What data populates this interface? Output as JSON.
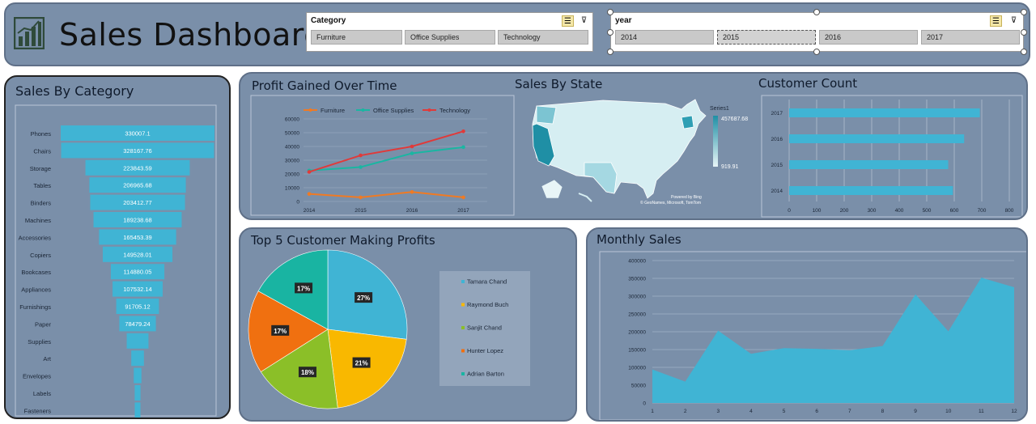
{
  "header": {
    "title": "Sales Dashboard",
    "category_slicer": {
      "label": "Category",
      "items": [
        "Furniture",
        "Office Supplies",
        "Technology"
      ]
    },
    "year_slicer": {
      "label": "year",
      "items": [
        "2014",
        "2015",
        "2016",
        "2017"
      ],
      "selected": "2015"
    }
  },
  "colors": {
    "panel_bg": "#7a8fa9",
    "bar": "#40b4d4",
    "furniture": "#f07a23",
    "office_supplies": "#1ab6a2",
    "technology": "#e03a3a",
    "pie": [
      "#40b4d4",
      "#f9b800",
      "#8bbf28",
      "#f07010",
      "#19b4a2"
    ]
  },
  "chart_data": [
    {
      "id": "sales_by_category",
      "type": "bar",
      "title": "Sales By Category",
      "categories": [
        "Phones",
        "Chairs",
        "Storage",
        "Tables",
        "Binders",
        "Machines",
        "Accessories",
        "Copiers",
        "Bookcases",
        "Appliances",
        "Furnishings",
        "Paper",
        "Supplies",
        "Art",
        "Envelopes",
        "Labels",
        "Fasteners"
      ],
      "values": [
        330007.1,
        328167.76,
        223843.59,
        206965.68,
        203412.77,
        189238.68,
        165453.39,
        149528.01,
        114880.05,
        107532.14,
        91705.12,
        78479.24,
        46673.5,
        27118.8,
        16476.4,
        12486.3,
        3024.3
      ],
      "labels": [
        "330007.1",
        "328167.76",
        "223843.59",
        "206965.68",
        "203412.77",
        "189238.68",
        "165453.39",
        "149528.01",
        "114880.05",
        "107532.14",
        "91705.12",
        "78479.24",
        "",
        "",
        "",
        "",
        ""
      ]
    },
    {
      "id": "profit_over_time",
      "type": "line",
      "title": "Profit Gained Over Time",
      "x": [
        "2014",
        "2015",
        "2016",
        "2017"
      ],
      "yticks": [
        "0",
        "10000",
        "20000",
        "30000",
        "40000",
        "50000",
        "60000"
      ],
      "ylim": [
        0,
        60000
      ],
      "series": [
        {
          "name": "Furniture",
          "values": [
            5500,
            3000,
            6900,
            3000
          ]
        },
        {
          "name": "Office Supplies",
          "values": [
            22500,
            25000,
            35000,
            39500
          ]
        },
        {
          "name": "Technology",
          "values": [
            21500,
            33500,
            40000,
            51000
          ]
        }
      ]
    },
    {
      "id": "sales_by_state",
      "type": "map",
      "title": "Sales By State",
      "legend_title": "Series1",
      "legend_max": "457687.68",
      "legend_min": "919.91",
      "credit1": "Powered by Bing",
      "credit2": "© GeoNames, Microsoft, TomTom"
    },
    {
      "id": "customer_count",
      "type": "bar",
      "title": "Customer Count",
      "categories": [
        "2017",
        "2016",
        "2015",
        "2014"
      ],
      "values": [
        693,
        636,
        578,
        595
      ],
      "xticks": [
        "0",
        "100",
        "200",
        "300",
        "400",
        "500",
        "600",
        "700",
        "800"
      ],
      "xlim": [
        0,
        800
      ]
    },
    {
      "id": "top5_customers",
      "type": "pie",
      "title": "Top 5 Customer Making Profits",
      "labels": [
        "Tamara Chand",
        "Raymond Buch",
        "Sanjit Chand",
        "Hunter Lopez",
        "Adrian Barton"
      ],
      "values": [
        27,
        21,
        18,
        17,
        17
      ],
      "pct_labels": [
        "27%",
        "21%",
        "18%",
        "17%",
        "17%"
      ]
    },
    {
      "id": "monthly_sales",
      "type": "area",
      "title": "Monthly Sales",
      "x": [
        "1",
        "2",
        "3",
        "4",
        "5",
        "6",
        "7",
        "8",
        "9",
        "10",
        "11",
        "12"
      ],
      "values": [
        94000,
        60000,
        203000,
        138000,
        154000,
        152000,
        148000,
        160000,
        305000,
        201000,
        352000,
        325000
      ],
      "yticks": [
        "0",
        "50000",
        "100000",
        "150000",
        "200000",
        "250000",
        "300000",
        "350000",
        "400000"
      ],
      "ylim": [
        0,
        400000
      ]
    }
  ]
}
